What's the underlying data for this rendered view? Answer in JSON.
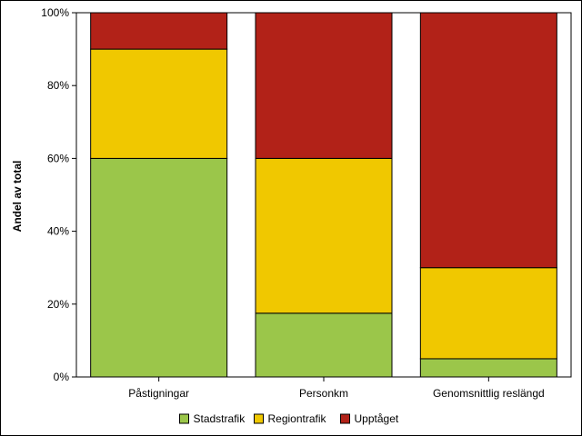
{
  "chart_data": {
    "type": "bar",
    "stacked": true,
    "categories": [
      "Påstigningar",
      "Personkm",
      "Genomsnittlig reslängd"
    ],
    "series": [
      {
        "name": "Stadstrafik",
        "values": [
          60,
          17.5,
          5
        ],
        "color": "#9bc64a"
      },
      {
        "name": "Regiontrafik",
        "values": [
          30,
          42.5,
          25
        ],
        "color": "#f0c800"
      },
      {
        "name": "Upptåget",
        "values": [
          10,
          40,
          70
        ],
        "color": "#b22218"
      }
    ],
    "ylabel": "Andel av total",
    "ylim": [
      0,
      100
    ],
    "yticks": [
      "0%",
      "20%",
      "40%",
      "60%",
      "80%",
      "100%"
    ],
    "ytick_values": [
      0,
      20,
      40,
      60,
      80,
      100
    ],
    "legend_position": "bottom",
    "grid": false
  }
}
